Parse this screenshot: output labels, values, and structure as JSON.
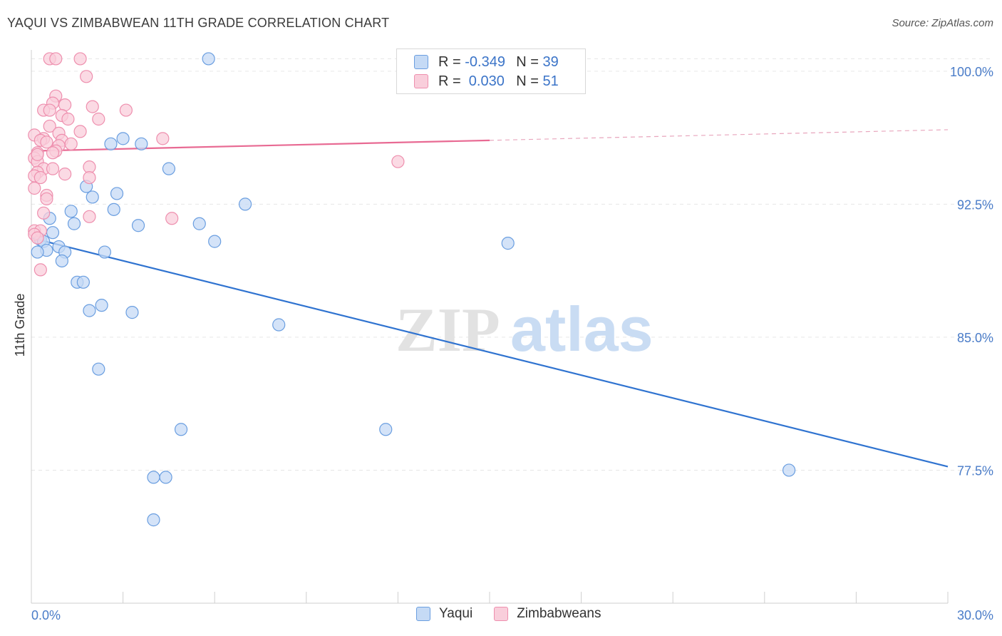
{
  "header": {
    "title": "YAQUI VS ZIMBABWEAN 11TH GRADE CORRELATION CHART",
    "source": "Source: ZipAtlas.com"
  },
  "watermark": {
    "zip": "ZIP",
    "atlas": "atlas"
  },
  "legend": {
    "r_label": "R =",
    "n_label": "N =",
    "rows": [
      {
        "r": "-0.349",
        "n": "39",
        "color": "#6a9ee0",
        "fill": "#c5daf5"
      },
      {
        "r": " 0.030",
        "n": "51",
        "color": "#ee8fae",
        "fill": "#f9cedb"
      }
    ]
  },
  "bottom_legend": [
    {
      "label": "Yaqui",
      "color": "#6a9ee0",
      "fill": "#c5daf5"
    },
    {
      "label": "Zimbabweans",
      "color": "#ee8fae",
      "fill": "#f9cedb"
    }
  ],
  "chart_data": {
    "type": "scatter",
    "title": "YAQUI VS ZIMBABWEAN 11TH GRADE CORRELATION CHART",
    "xlabel": "",
    "ylabel": "11th Grade",
    "xlim": [
      0,
      30
    ],
    "ylim": [
      70,
      101.2
    ],
    "x_tick_labels": [
      "0.0%",
      "30.0%"
    ],
    "y_ticks": [
      100.0,
      92.5,
      85.0,
      77.5
    ],
    "y_tick_labels": [
      "100.0%",
      "92.5%",
      "85.0%",
      "77.5%"
    ],
    "grid": true,
    "legend_position": "top-center",
    "series": [
      {
        "name": "Yaqui",
        "color": "#6a9ee0",
        "fill": "#c5daf5",
        "points": [
          [
            5.8,
            100.7
          ],
          [
            3.0,
            96.2
          ],
          [
            2.6,
            95.9
          ],
          [
            3.6,
            95.9
          ],
          [
            4.5,
            94.5
          ],
          [
            1.8,
            93.5
          ],
          [
            2.0,
            92.9
          ],
          [
            2.8,
            93.1
          ],
          [
            7.0,
            92.5
          ],
          [
            1.3,
            92.1
          ],
          [
            2.7,
            92.2
          ],
          [
            0.6,
            91.7
          ],
          [
            1.4,
            91.4
          ],
          [
            3.5,
            91.3
          ],
          [
            5.5,
            91.4
          ],
          [
            0.7,
            90.9
          ],
          [
            0.3,
            90.5
          ],
          [
            0.4,
            90.4
          ],
          [
            6.0,
            90.4
          ],
          [
            15.6,
            90.3
          ],
          [
            0.9,
            90.1
          ],
          [
            0.5,
            89.9
          ],
          [
            0.2,
            89.8
          ],
          [
            1.1,
            89.8
          ],
          [
            2.4,
            89.8
          ],
          [
            1.0,
            89.3
          ],
          [
            1.5,
            88.1
          ],
          [
            1.7,
            88.1
          ],
          [
            2.3,
            86.8
          ],
          [
            1.9,
            86.5
          ],
          [
            3.3,
            86.4
          ],
          [
            8.1,
            85.7
          ],
          [
            2.2,
            83.2
          ],
          [
            4.9,
            79.8
          ],
          [
            11.6,
            79.8
          ],
          [
            24.8,
            77.5
          ],
          [
            4.0,
            77.1
          ],
          [
            4.4,
            77.1
          ],
          [
            4.0,
            74.7
          ]
        ]
      },
      {
        "name": "Zimbabweans",
        "color": "#ee8fae",
        "fill": "#f9cedb",
        "points": [
          [
            0.6,
            100.7
          ],
          [
            0.8,
            100.7
          ],
          [
            1.6,
            100.7
          ],
          [
            1.8,
            99.7
          ],
          [
            0.8,
            98.6
          ],
          [
            0.7,
            98.2
          ],
          [
            1.1,
            98.1
          ],
          [
            2.0,
            98.0
          ],
          [
            0.4,
            97.8
          ],
          [
            0.6,
            97.8
          ],
          [
            3.1,
            97.8
          ],
          [
            1.0,
            97.5
          ],
          [
            1.2,
            97.3
          ],
          [
            2.2,
            97.3
          ],
          [
            0.6,
            96.9
          ],
          [
            1.6,
            96.6
          ],
          [
            0.1,
            96.4
          ],
          [
            0.9,
            96.5
          ],
          [
            0.4,
            96.2
          ],
          [
            0.3,
            96.1
          ],
          [
            1.0,
            96.1
          ],
          [
            4.3,
            96.2
          ],
          [
            0.5,
            96.0
          ],
          [
            0.9,
            95.8
          ],
          [
            0.8,
            95.5
          ],
          [
            0.2,
            95.4
          ],
          [
            0.7,
            95.4
          ],
          [
            0.1,
            95.1
          ],
          [
            0.2,
            94.9
          ],
          [
            12.0,
            94.9
          ],
          [
            0.4,
            94.5
          ],
          [
            0.7,
            94.5
          ],
          [
            1.9,
            94.6
          ],
          [
            0.2,
            94.3
          ],
          [
            1.1,
            94.2
          ],
          [
            0.1,
            94.1
          ],
          [
            0.3,
            94.0
          ],
          [
            1.9,
            94.0
          ],
          [
            0.1,
            93.4
          ],
          [
            0.5,
            93.0
          ],
          [
            0.5,
            92.8
          ],
          [
            0.4,
            92.0
          ],
          [
            1.9,
            91.8
          ],
          [
            4.6,
            91.7
          ],
          [
            0.1,
            91.0
          ],
          [
            0.3,
            91.0
          ],
          [
            0.1,
            90.8
          ],
          [
            0.2,
            90.6
          ],
          [
            0.3,
            88.8
          ],
          [
            0.2,
            95.3
          ],
          [
            1.3,
            95.9
          ]
        ]
      }
    ],
    "trend_lines": [
      {
        "series": "Yaqui",
        "x": [
          0,
          30
        ],
        "y": [
          90.6,
          77.7
        ],
        "style": "solid",
        "color": "#2f73d0"
      },
      {
        "series": "Zimbabweans",
        "x": [
          0,
          15
        ],
        "y": [
          95.5,
          96.1
        ],
        "style": "solid",
        "color": "#e86a93"
      },
      {
        "series": "Zimbabweans",
        "x": [
          15,
          30
        ],
        "y": [
          96.1,
          96.7
        ],
        "style": "dashed",
        "color": "#e8a6bd"
      }
    ]
  }
}
